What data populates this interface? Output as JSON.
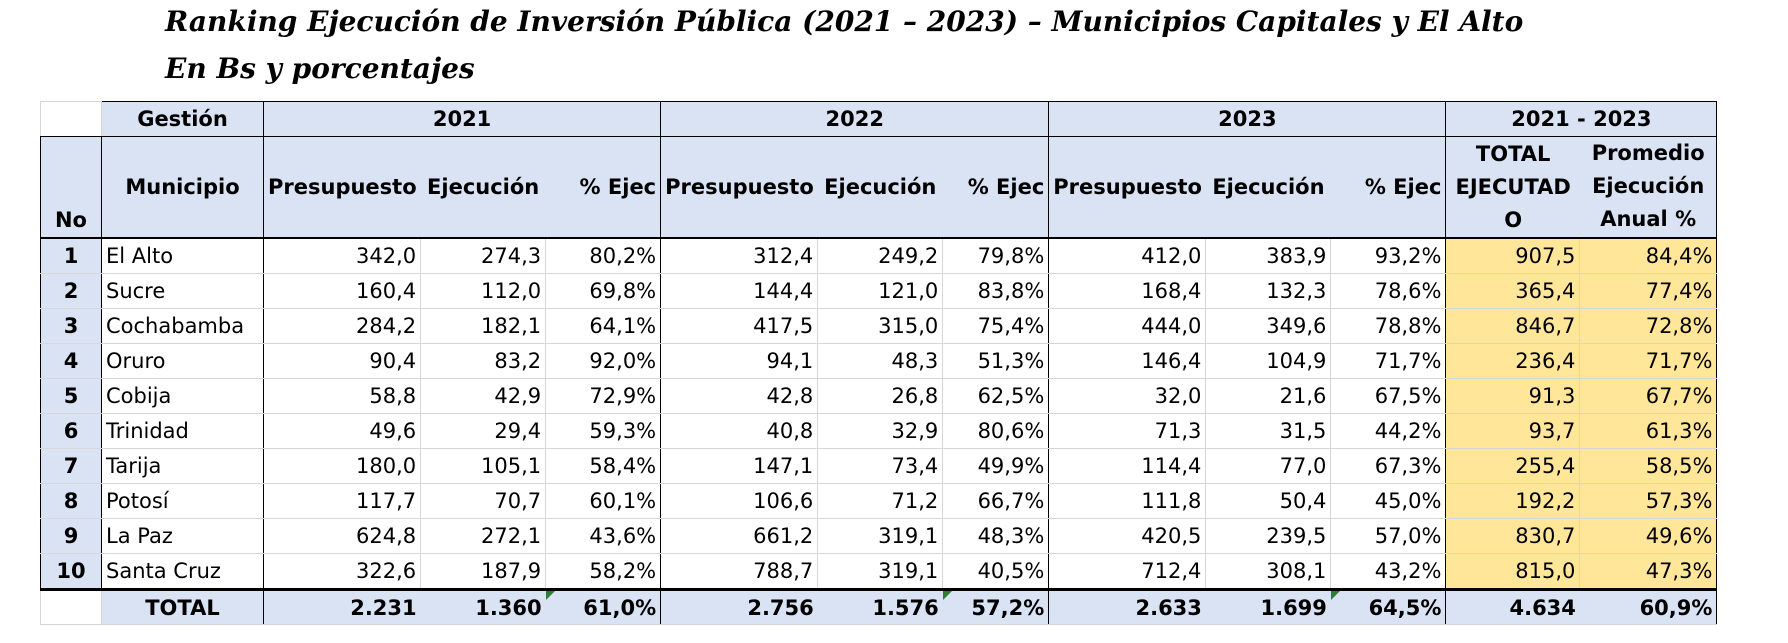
{
  "title": "Ranking Ejecución de Inversión Pública (2021 – 2023) – Municipios Capitales y El Alto",
  "subtitle": "En Bs y porcentajes",
  "header": {
    "gestion": "Gestión",
    "year_2021": "2021",
    "year_2022": "2022",
    "year_2023": "2023",
    "range": "2021 - 2023",
    "no": "No",
    "municipio": "Municipio",
    "presupuesto": "Presupuesto",
    "ejecucion": "Ejecución",
    "pct_ejec": "% Ejec",
    "total_ejecutado_line1": "TOTAL",
    "total_ejecutado_line2": "EJECUTAD",
    "total_ejecutado_line3": "O",
    "promedio_line1": "Promedio",
    "promedio_line2": "Ejecución",
    "promedio_line3": "Anual %"
  },
  "rows": [
    {
      "no": "1",
      "municipio": "El Alto",
      "p21": "342,0",
      "e21": "274,3",
      "x21": "80,2%",
      "p22": "312,4",
      "e22": "249,2",
      "x22": "79,8%",
      "p23": "412,0",
      "e23": "383,9",
      "x23": "93,2%",
      "total": "907,5",
      "prom": "84,4%"
    },
    {
      "no": "2",
      "municipio": "Sucre",
      "p21": "160,4",
      "e21": "112,0",
      "x21": "69,8%",
      "p22": "144,4",
      "e22": "121,0",
      "x22": "83,8%",
      "p23": "168,4",
      "e23": "132,3",
      "x23": "78,6%",
      "total": "365,4",
      "prom": "77,4%"
    },
    {
      "no": "3",
      "municipio": "Cochabamba",
      "p21": "284,2",
      "e21": "182,1",
      "x21": "64,1%",
      "p22": "417,5",
      "e22": "315,0",
      "x22": "75,4%",
      "p23": "444,0",
      "e23": "349,6",
      "x23": "78,8%",
      "total": "846,7",
      "prom": "72,8%"
    },
    {
      "no": "4",
      "municipio": "Oruro",
      "p21": "90,4",
      "e21": "83,2",
      "x21": "92,0%",
      "p22": "94,1",
      "e22": "48,3",
      "x22": "51,3%",
      "p23": "146,4",
      "e23": "104,9",
      "x23": "71,7%",
      "total": "236,4",
      "prom": "71,7%"
    },
    {
      "no": "5",
      "municipio": "Cobija",
      "p21": "58,8",
      "e21": "42,9",
      "x21": "72,9%",
      "p22": "42,8",
      "e22": "26,8",
      "x22": "62,5%",
      "p23": "32,0",
      "e23": "21,6",
      "x23": "67,5%",
      "total": "91,3",
      "prom": "67,7%"
    },
    {
      "no": "6",
      "municipio": "Trinidad",
      "p21": "49,6",
      "e21": "29,4",
      "x21": "59,3%",
      "p22": "40,8",
      "e22": "32,9",
      "x22": "80,6%",
      "p23": "71,3",
      "e23": "31,5",
      "x23": "44,2%",
      "total": "93,7",
      "prom": "61,3%"
    },
    {
      "no": "7",
      "municipio": "Tarija",
      "p21": "180,0",
      "e21": "105,1",
      "x21": "58,4%",
      "p22": "147,1",
      "e22": "73,4",
      "x22": "49,9%",
      "p23": "114,4",
      "e23": "77,0",
      "x23": "67,3%",
      "total": "255,4",
      "prom": "58,5%"
    },
    {
      "no": "8",
      "municipio": "Potosí",
      "p21": "117,7",
      "e21": "70,7",
      "x21": "60,1%",
      "p22": "106,6",
      "e22": "71,2",
      "x22": "66,7%",
      "p23": "111,8",
      "e23": "50,4",
      "x23": "45,0%",
      "total": "192,2",
      "prom": "57,3%"
    },
    {
      "no": "9",
      "municipio": "La Paz",
      "p21": "624,8",
      "e21": "272,1",
      "x21": "43,6%",
      "p22": "661,2",
      "e22": "319,1",
      "x22": "48,3%",
      "p23": "420,5",
      "e23": "239,5",
      "x23": "57,0%",
      "total": "830,7",
      "prom": "49,6%"
    },
    {
      "no": "10",
      "municipio": "Santa Cruz",
      "p21": "322,6",
      "e21": "187,9",
      "x21": "58,2%",
      "p22": "788,7",
      "e22": "319,1",
      "x22": "40,5%",
      "p23": "712,4",
      "e23": "308,1",
      "x23": "43,2%",
      "total": "815,0",
      "prom": "47,3%"
    }
  ],
  "totals": {
    "label": "TOTAL",
    "p21": "2.231",
    "e21": "1.360",
    "x21": "61,0%",
    "p22": "2.756",
    "e22": "1.576",
    "x22": "57,2%",
    "p23": "2.633",
    "e23": "1.699",
    "x23": "64,5%",
    "total": "4.634",
    "prom": "60,9%"
  },
  "colors": {
    "header_fill": "#dae3f3",
    "highlight_fill": "#ffe699",
    "corner_marker": "#2e7d32"
  }
}
